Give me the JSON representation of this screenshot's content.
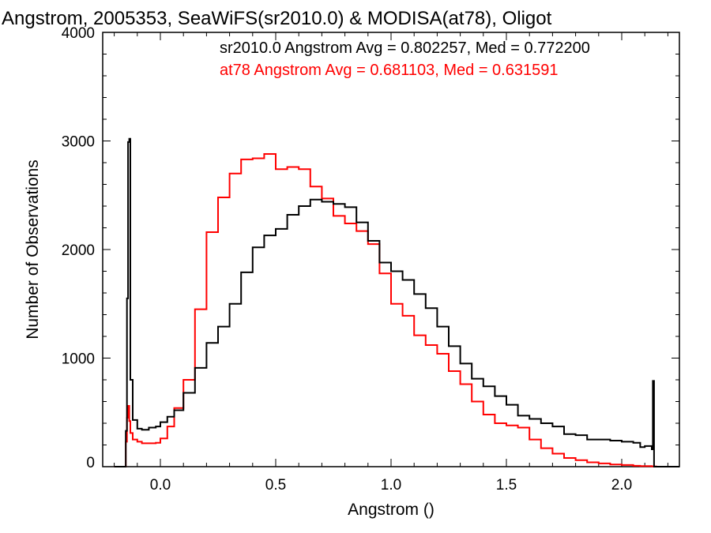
{
  "chart_data": {
    "type": "line",
    "title": "Angstrom, 2005353, SeaWiFS(sr2010.0) & MODISA(at78), Oligot",
    "xlabel": "Angstrom ()",
    "ylabel": "Number of Observations",
    "xlim": [
      -0.25,
      2.25
    ],
    "ylim": [
      0,
      4000
    ],
    "x_ticks": [
      "0.0",
      "0.5",
      "1.0",
      "1.5",
      "2.0"
    ],
    "y_ticks": [
      "0",
      "1000",
      "2000",
      "3000",
      "4000"
    ],
    "grid": false,
    "annotations": [
      {
        "text": "sr2010.0 Angstrom Avg = 0.802257, Med = 0.772200",
        "color": "#000000"
      },
      {
        "text": "at78 Angstrom Avg = 0.681103, Med = 0.631591",
        "color": "#ff0000"
      }
    ],
    "series": [
      {
        "color": "#000000",
        "x": [
          -0.2,
          -0.16,
          -0.155,
          -0.15,
          -0.145,
          -0.14,
          -0.135,
          -0.13,
          -0.12,
          -0.1,
          -0.08,
          -0.05,
          -0.02,
          0.0,
          0.03,
          0.06,
          0.1,
          0.15,
          0.2,
          0.25,
          0.3,
          0.35,
          0.4,
          0.45,
          0.5,
          0.55,
          0.6,
          0.65,
          0.7,
          0.75,
          0.8,
          0.85,
          0.9,
          0.95,
          1.0,
          1.05,
          1.1,
          1.15,
          1.2,
          1.25,
          1.3,
          1.35,
          1.4,
          1.45,
          1.5,
          1.55,
          1.6,
          1.65,
          1.7,
          1.75,
          1.8,
          1.85,
          1.9,
          1.95,
          2.0,
          2.05,
          2.08,
          2.1,
          2.12,
          2.13,
          2.135,
          2.14,
          2.145,
          2.15,
          2.25
        ],
        "y": [
          0,
          0,
          0,
          330,
          1550,
          2990,
          3020,
          800,
          430,
          350,
          340,
          360,
          370,
          410,
          460,
          520,
          680,
          910,
          1140,
          1290,
          1500,
          1790,
          2020,
          2130,
          2190,
          2320,
          2400,
          2460,
          2440,
          2420,
          2390,
          2250,
          2080,
          1880,
          1800,
          1720,
          1590,
          1460,
          1290,
          1110,
          950,
          810,
          740,
          650,
          570,
          470,
          440,
          400,
          370,
          300,
          290,
          250,
          250,
          240,
          230,
          220,
          180,
          190,
          190,
          160,
          790,
          0,
          0,
          0,
          0
        ]
      },
      {
        "color": "#ff0000",
        "x": [
          -0.2,
          -0.16,
          -0.155,
          -0.15,
          -0.145,
          -0.14,
          -0.135,
          -0.13,
          -0.12,
          -0.1,
          -0.08,
          -0.05,
          -0.02,
          0.0,
          0.03,
          0.06,
          0.1,
          0.15,
          0.2,
          0.25,
          0.3,
          0.35,
          0.4,
          0.45,
          0.5,
          0.55,
          0.6,
          0.65,
          0.7,
          0.75,
          0.8,
          0.85,
          0.9,
          0.95,
          1.0,
          1.05,
          1.1,
          1.15,
          1.2,
          1.25,
          1.3,
          1.35,
          1.4,
          1.45,
          1.5,
          1.55,
          1.6,
          1.65,
          1.7,
          1.75,
          1.8,
          1.85,
          1.9,
          1.95,
          2.0,
          2.05,
          2.08,
          2.1,
          2.12,
          2.13,
          2.135,
          2.14,
          2.145,
          2.15,
          2.25
        ],
        "y": [
          0,
          0,
          0,
          230,
          450,
          560,
          420,
          310,
          250,
          230,
          215,
          215,
          220,
          260,
          370,
          540,
          800,
          1450,
          2160,
          2480,
          2700,
          2830,
          2840,
          2880,
          2740,
          2760,
          2740,
          2580,
          2470,
          2310,
          2240,
          2170,
          2050,
          1780,
          1500,
          1390,
          1210,
          1120,
          1040,
          880,
          760,
          600,
          480,
          400,
          380,
          360,
          250,
          170,
          120,
          80,
          60,
          40,
          30,
          20,
          15,
          8,
          5,
          5,
          5,
          3,
          3,
          3,
          2,
          0,
          0
        ]
      }
    ]
  }
}
